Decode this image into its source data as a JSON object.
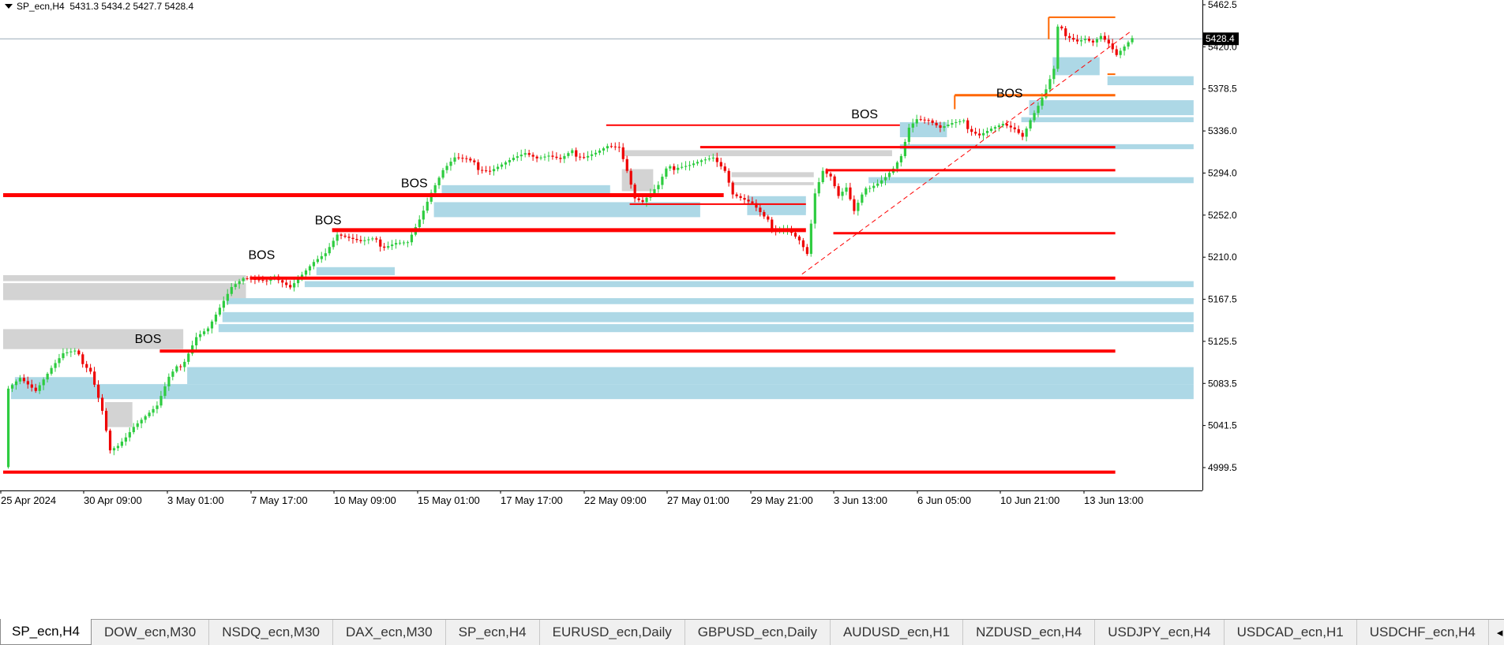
{
  "header": {
    "symbol": "SP_ecn,H4",
    "ohlc": "5431.3 5434.2 5427.7 5428.4"
  },
  "tabs": [
    {
      "label": "SP_ecn,H4",
      "active": true
    },
    {
      "label": "DOW_ecn,M30"
    },
    {
      "label": "NSDQ_ecn,M30"
    },
    {
      "label": "DAX_ecn,M30"
    },
    {
      "label": "SP_ecn,H4"
    },
    {
      "label": "EURUSD_ecn,Daily"
    },
    {
      "label": "GBPUSD_ecn,Daily"
    },
    {
      "label": "AUDUSD_ecn,H1"
    },
    {
      "label": "NZDUSD_ecn,H4"
    },
    {
      "label": "USDJPY_ecn,H4"
    },
    {
      "label": "USDCAD_ecn,H1"
    },
    {
      "label": "USDCHF_ecn,H4"
    }
  ],
  "tab_scroll": {
    "left": "◂",
    "right": "▸"
  },
  "colors": {
    "bull": "#2ecc40",
    "bear": "#ee0000",
    "level": "#ff0000",
    "orange": "#ff6600",
    "zone_blue": "#add8e6",
    "zone_gray": "#d3d3d3",
    "trend": "#ff0000",
    "priceline": "#9aaab8"
  },
  "chart_data": {
    "type": "candlestick",
    "symbol": "SP_ecn",
    "timeframe": "H4",
    "ylim": [
      4990.0,
      5462.5
    ],
    "y_ticks": [
      "5462.5",
      "5420.0",
      "5378.5",
      "5336.0",
      "5294.0",
      "5252.0",
      "5210.0",
      "5167.5",
      "5125.5",
      "5083.5",
      "5041.5",
      "4999.5"
    ],
    "x_ticks": [
      "25 Apr 2024",
      "30 Apr 09:00",
      "3 May 01:00",
      "7 May 17:00",
      "10 May 09:00",
      "15 May 01:00",
      "17 May 17:00",
      "22 May 09:00",
      "27 May 01:00",
      "29 May 21:00",
      "3 Jun 13:00",
      "6 Jun 05:00",
      "10 Jun 21:00",
      "13 Jun 13:00"
    ],
    "current_price": "5428.4",
    "annotations": [
      {
        "text": "BOS",
        "bar": 37,
        "price": 5124
      },
      {
        "text": "BOS",
        "bar": 66,
        "price": 5208
      },
      {
        "text": "BOS",
        "bar": 83,
        "price": 5243
      },
      {
        "text": "BOS",
        "bar": 105,
        "price": 5280
      },
      {
        "text": "BOS",
        "bar": 220,
        "price": 5349
      },
      {
        "text": "BOS",
        "bar": 257,
        "price": 5370
      }
    ],
    "levels": [
      {
        "price": 4995,
        "from": 0,
        "to": 284,
        "color": "red",
        "width": 4
      },
      {
        "price": 5116,
        "from": 40,
        "to": 284,
        "color": "red",
        "width": 4
      },
      {
        "price": 5189,
        "from": 63,
        "to": 284,
        "color": "red",
        "width": 4
      },
      {
        "price": 5237,
        "from": 84,
        "to": 205,
        "color": "red",
        "width": 5
      },
      {
        "price": 5272,
        "from": 0,
        "to": 184,
        "color": "red",
        "width": 5
      },
      {
        "price": 5263,
        "from": 160,
        "to": 205,
        "color": "red",
        "width": 2
      },
      {
        "price": 5342,
        "from": 154,
        "to": 229,
        "color": "red",
        "width": 2
      },
      {
        "price": 5320,
        "from": 178,
        "to": 284,
        "color": "red",
        "width": 3
      },
      {
        "price": 5297,
        "from": 210,
        "to": 284,
        "color": "red",
        "width": 3
      },
      {
        "price": 5234,
        "from": 212,
        "to": 284,
        "color": "red",
        "width": 3
      },
      {
        "price": 5372,
        "from": 243,
        "to": 284,
        "color": "orange",
        "width": 3
      },
      {
        "price": 5450,
        "from": 267,
        "to": 284,
        "color": "orange",
        "width": 2
      },
      {
        "price": 5393,
        "from": 282,
        "to": 284,
        "color": "orange",
        "width": 2
      }
    ],
    "zones_blue": [
      {
        "top": 5083,
        "bottom": 5068,
        "from": 2,
        "to": 304
      },
      {
        "top": 5100,
        "bottom": 5083,
        "from": 47,
        "to": 304
      },
      {
        "top": 5143,
        "bottom": 5135,
        "from": 55,
        "to": 304
      },
      {
        "top": 5155,
        "bottom": 5145,
        "from": 56,
        "to": 304
      },
      {
        "top": 5169,
        "bottom": 5163,
        "from": 57,
        "to": 304
      },
      {
        "top": 5186,
        "bottom": 5180,
        "from": 77,
        "to": 304
      },
      {
        "top": 5290,
        "bottom": 5284,
        "from": 221,
        "to": 304
      },
      {
        "top": 5350,
        "bottom": 5345,
        "from": 260,
        "to": 304
      },
      {
        "top": 5367,
        "bottom": 5352,
        "from": 262,
        "to": 304
      },
      {
        "top": 5391,
        "bottom": 5382,
        "from": 282,
        "to": 304
      },
      {
        "top": 5323,
        "bottom": 5318,
        "from": 229,
        "to": 304
      },
      {
        "top": 5090,
        "bottom": 5070,
        "from": 3,
        "to": 23
      },
      {
        "top": 5265,
        "bottom": 5250,
        "from": 110,
        "to": 178
      },
      {
        "top": 5282,
        "bottom": 5272,
        "from": 112,
        "to": 155
      },
      {
        "top": 5271,
        "bottom": 5252,
        "from": 190,
        "to": 205
      },
      {
        "top": 5200,
        "bottom": 5192,
        "from": 80,
        "to": 100
      },
      {
        "top": 5345,
        "bottom": 5330,
        "from": 229,
        "to": 241
      },
      {
        "top": 5410,
        "bottom": 5392,
        "from": 268,
        "to": 280
      }
    ],
    "zones_gray": [
      {
        "top": 5192,
        "bottom": 5186,
        "from": 0,
        "to": 62
      },
      {
        "top": 5184,
        "bottom": 5167,
        "from": 0,
        "to": 62
      },
      {
        "top": 5138,
        "bottom": 5118,
        "from": 0,
        "to": 46
      },
      {
        "top": 5082,
        "bottom": 5073,
        "from": 25,
        "to": 32
      },
      {
        "top": 5065,
        "bottom": 5040,
        "from": 26,
        "to": 33
      },
      {
        "top": 5317,
        "bottom": 5311,
        "from": 158,
        "to": 227
      },
      {
        "top": 5298,
        "bottom": 5276,
        "from": 158,
        "to": 166
      },
      {
        "top": 5295,
        "bottom": 5290,
        "from": 186,
        "to": 207
      },
      {
        "top": 5285,
        "bottom": 5282,
        "from": 186,
        "to": 207
      },
      {
        "top": 5263,
        "bottom": 5255,
        "from": 191,
        "to": 205
      }
    ],
    "trendline": {
      "from_bar": 204,
      "from_price": 5193,
      "to_bar": 288,
      "to_price": 5436
    }
  }
}
